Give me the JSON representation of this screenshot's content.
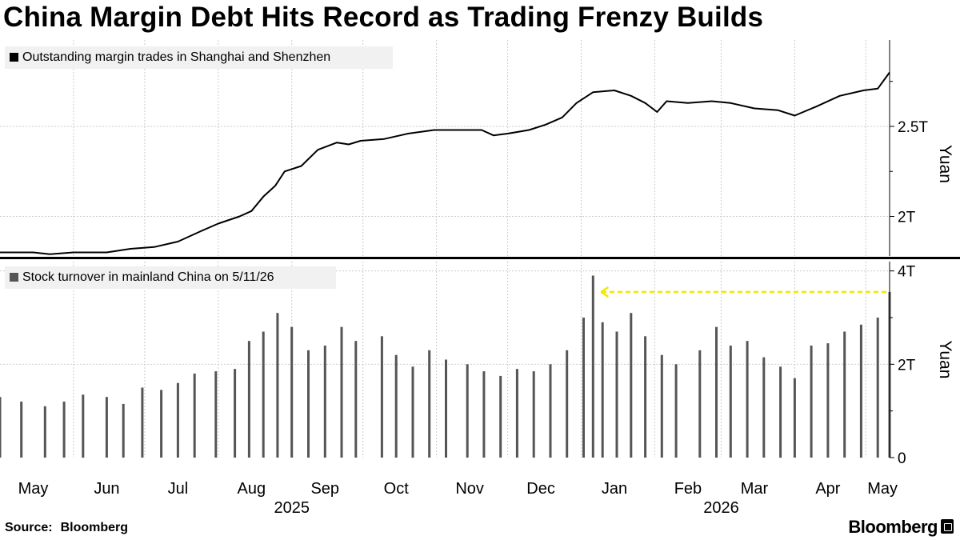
{
  "title": "China Margin Debt Hits Record as Trading Frenzy Builds",
  "source_label": "Source:",
  "source_value": "Bloomberg",
  "brand": "Bloomberg",
  "colors": {
    "line": "#000000",
    "bars": "#555555",
    "grid": "#cccccc",
    "divider": "#000000",
    "highlight": "#f2e800"
  },
  "chart_data": [
    {
      "type": "line",
      "legend": "Outstanding margin trades in Shanghai and Shenzhen",
      "ylabel": "Yuan",
      "y_unit": "trillion yuan",
      "ylim": [
        1.78,
        2.98
      ],
      "yticks": [
        {
          "value": 2.0,
          "label": "2T"
        },
        {
          "value": 2.5,
          "label": "2.5T"
        }
      ],
      "x_start": "2025-05-01",
      "x_end": "2026-05-11",
      "grid": true,
      "points": [
        [
          "2025-05-01",
          1.8
        ],
        [
          "2025-05-15",
          1.8
        ],
        [
          "2025-05-22",
          1.79
        ],
        [
          "2025-06-01",
          1.8
        ],
        [
          "2025-06-15",
          1.8
        ],
        [
          "2025-06-25",
          1.82
        ],
        [
          "2025-07-05",
          1.83
        ],
        [
          "2025-07-15",
          1.86
        ],
        [
          "2025-07-25",
          1.92
        ],
        [
          "2025-08-01",
          1.96
        ],
        [
          "2025-08-10",
          2.0
        ],
        [
          "2025-08-15",
          2.03
        ],
        [
          "2025-08-20",
          2.11
        ],
        [
          "2025-08-25",
          2.17
        ],
        [
          "2025-08-29",
          2.25
        ],
        [
          "2025-09-05",
          2.28
        ],
        [
          "2025-09-12",
          2.37
        ],
        [
          "2025-09-20",
          2.41
        ],
        [
          "2025-09-25",
          2.4
        ],
        [
          "2025-09-30",
          2.42
        ],
        [
          "2025-10-10",
          2.43
        ],
        [
          "2025-10-20",
          2.46
        ],
        [
          "2025-10-31",
          2.48
        ],
        [
          "2025-11-10",
          2.48
        ],
        [
          "2025-11-20",
          2.48
        ],
        [
          "2025-11-25",
          2.45
        ],
        [
          "2025-12-01",
          2.46
        ],
        [
          "2025-12-10",
          2.48
        ],
        [
          "2025-12-17",
          2.51
        ],
        [
          "2025-12-24",
          2.55
        ],
        [
          "2025-12-30",
          2.63
        ],
        [
          "2026-01-06",
          2.69
        ],
        [
          "2026-01-15",
          2.7
        ],
        [
          "2026-01-22",
          2.67
        ],
        [
          "2026-01-28",
          2.63
        ],
        [
          "2026-02-02",
          2.58
        ],
        [
          "2026-02-06",
          2.64
        ],
        [
          "2026-02-15",
          2.63
        ],
        [
          "2026-02-25",
          2.64
        ],
        [
          "2026-03-05",
          2.63
        ],
        [
          "2026-03-15",
          2.6
        ],
        [
          "2026-03-25",
          2.59
        ],
        [
          "2026-04-01",
          2.56
        ],
        [
          "2026-04-10",
          2.61
        ],
        [
          "2026-04-20",
          2.67
        ],
        [
          "2026-04-30",
          2.7
        ],
        [
          "2026-05-06",
          2.71
        ],
        [
          "2026-05-11",
          2.8
        ]
      ]
    },
    {
      "type": "bar",
      "legend": "Stock turnover in mainland China on 5/11/26",
      "ylabel": "Yuan",
      "y_unit": "trillion yuan",
      "ylim": [
        0,
        4.2
      ],
      "yticks": [
        {
          "value": 0,
          "label": "0"
        },
        {
          "value": 2,
          "label": "2T"
        },
        {
          "value": 4,
          "label": "4T"
        }
      ],
      "x_start": "2025-05-01",
      "x_end": "2026-05-11",
      "grid": true,
      "annotation": {
        "type": "dashed-arrow",
        "value": 3.55,
        "from": "2026-05-11",
        "to": "2026-01-06"
      },
      "points": [
        [
          "2025-05-01",
          1.3
        ],
        [
          "2025-05-10",
          1.2
        ],
        [
          "2025-05-20",
          1.1
        ],
        [
          "2025-05-28",
          1.2
        ],
        [
          "2025-06-05",
          1.35
        ],
        [
          "2025-06-15",
          1.3
        ],
        [
          "2025-06-22",
          1.15
        ],
        [
          "2025-06-30",
          1.5
        ],
        [
          "2025-07-08",
          1.45
        ],
        [
          "2025-07-15",
          1.6
        ],
        [
          "2025-07-22",
          1.8
        ],
        [
          "2025-07-31",
          1.85
        ],
        [
          "2025-08-08",
          1.9
        ],
        [
          "2025-08-14",
          2.5
        ],
        [
          "2025-08-20",
          2.7
        ],
        [
          "2025-08-26",
          3.1
        ],
        [
          "2025-09-01",
          2.8
        ],
        [
          "2025-09-08",
          2.3
        ],
        [
          "2025-09-15",
          2.4
        ],
        [
          "2025-09-22",
          2.8
        ],
        [
          "2025-09-28",
          2.5
        ],
        [
          "2025-10-09",
          2.6
        ],
        [
          "2025-10-15",
          2.2
        ],
        [
          "2025-10-22",
          1.95
        ],
        [
          "2025-10-29",
          2.3
        ],
        [
          "2025-11-05",
          2.1
        ],
        [
          "2025-11-14",
          2.0
        ],
        [
          "2025-11-21",
          1.85
        ],
        [
          "2025-11-28",
          1.75
        ],
        [
          "2025-12-05",
          1.9
        ],
        [
          "2025-12-12",
          1.85
        ],
        [
          "2025-12-19",
          2.0
        ],
        [
          "2025-12-26",
          2.3
        ],
        [
          "2026-01-02",
          3.0
        ],
        [
          "2026-01-06",
          3.9
        ],
        [
          "2026-01-10",
          2.9
        ],
        [
          "2026-01-16",
          2.7
        ],
        [
          "2026-01-22",
          3.1
        ],
        [
          "2026-01-28",
          2.6
        ],
        [
          "2026-02-04",
          2.2
        ],
        [
          "2026-02-10",
          2.0
        ],
        [
          "2026-02-20",
          2.3
        ],
        [
          "2026-02-27",
          2.8
        ],
        [
          "2026-03-05",
          2.4
        ],
        [
          "2026-03-12",
          2.5
        ],
        [
          "2026-03-19",
          2.15
        ],
        [
          "2026-03-26",
          1.95
        ],
        [
          "2026-04-01",
          1.7
        ],
        [
          "2026-04-08",
          2.4
        ],
        [
          "2026-04-15",
          2.45
        ],
        [
          "2026-04-22",
          2.7
        ],
        [
          "2026-04-29",
          2.85
        ],
        [
          "2026-05-06",
          3.0
        ],
        [
          "2026-05-11",
          3.55
        ]
      ]
    }
  ],
  "x_axis": {
    "months": [
      {
        "label": "May",
        "date": "2025-05-15"
      },
      {
        "label": "Jun",
        "date": "2025-06-15"
      },
      {
        "label": "Jul",
        "date": "2025-07-15"
      },
      {
        "label": "Aug",
        "date": "2025-08-15"
      },
      {
        "label": "Sep",
        "date": "2025-09-15"
      },
      {
        "label": "Oct",
        "date": "2025-10-15"
      },
      {
        "label": "Nov",
        "date": "2025-11-15"
      },
      {
        "label": "Dec",
        "date": "2025-12-15"
      },
      {
        "label": "Jan",
        "date": "2026-01-15"
      },
      {
        "label": "Feb",
        "date": "2026-02-15"
      },
      {
        "label": "Mar",
        "date": "2026-03-15"
      },
      {
        "label": "Apr",
        "date": "2026-04-15"
      },
      {
        "label": "May",
        "date": "2026-05-08"
      }
    ],
    "years": [
      {
        "label": "2025",
        "date": "2025-09-01"
      },
      {
        "label": "2026",
        "date": "2026-03-01"
      }
    ]
  }
}
